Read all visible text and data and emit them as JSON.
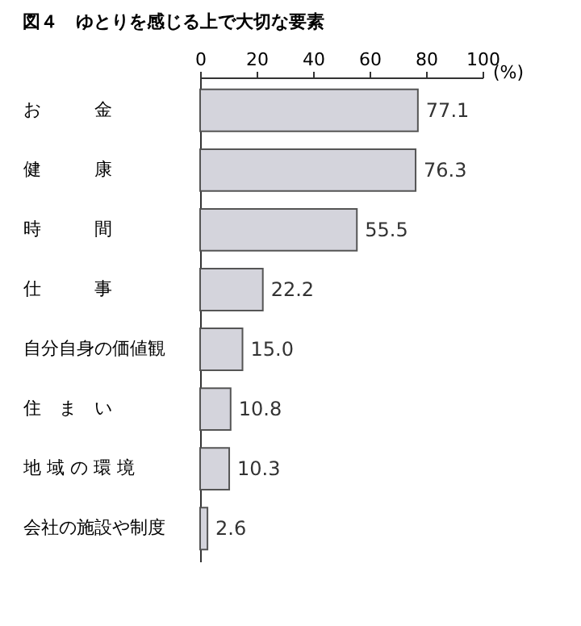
{
  "chart_data": {
    "type": "bar",
    "orientation": "horizontal",
    "title": "図４　ゆとりを感じる上で大切な要素",
    "xlabel": "(%)",
    "categories": [
      "お　　　金",
      "健　　　康",
      "時　　　間",
      "仕　　　事",
      "自分自身の価値観",
      "住　ま　い",
      "地 域 の 環 境",
      "会社の施設や制度"
    ],
    "values": [
      77.1,
      76.3,
      55.5,
      22.2,
      15.0,
      10.8,
      10.3,
      2.6
    ],
    "value_labels": [
      "77.1",
      "76.3",
      "55.5",
      "22.2",
      "15.0",
      "10.8",
      "10.3",
      "2.6"
    ],
    "color": "#d4d4dc",
    "xlim": [
      0,
      100
    ],
    "xticks": [
      0,
      20,
      40,
      60,
      80,
      100
    ],
    "grid": false
  }
}
